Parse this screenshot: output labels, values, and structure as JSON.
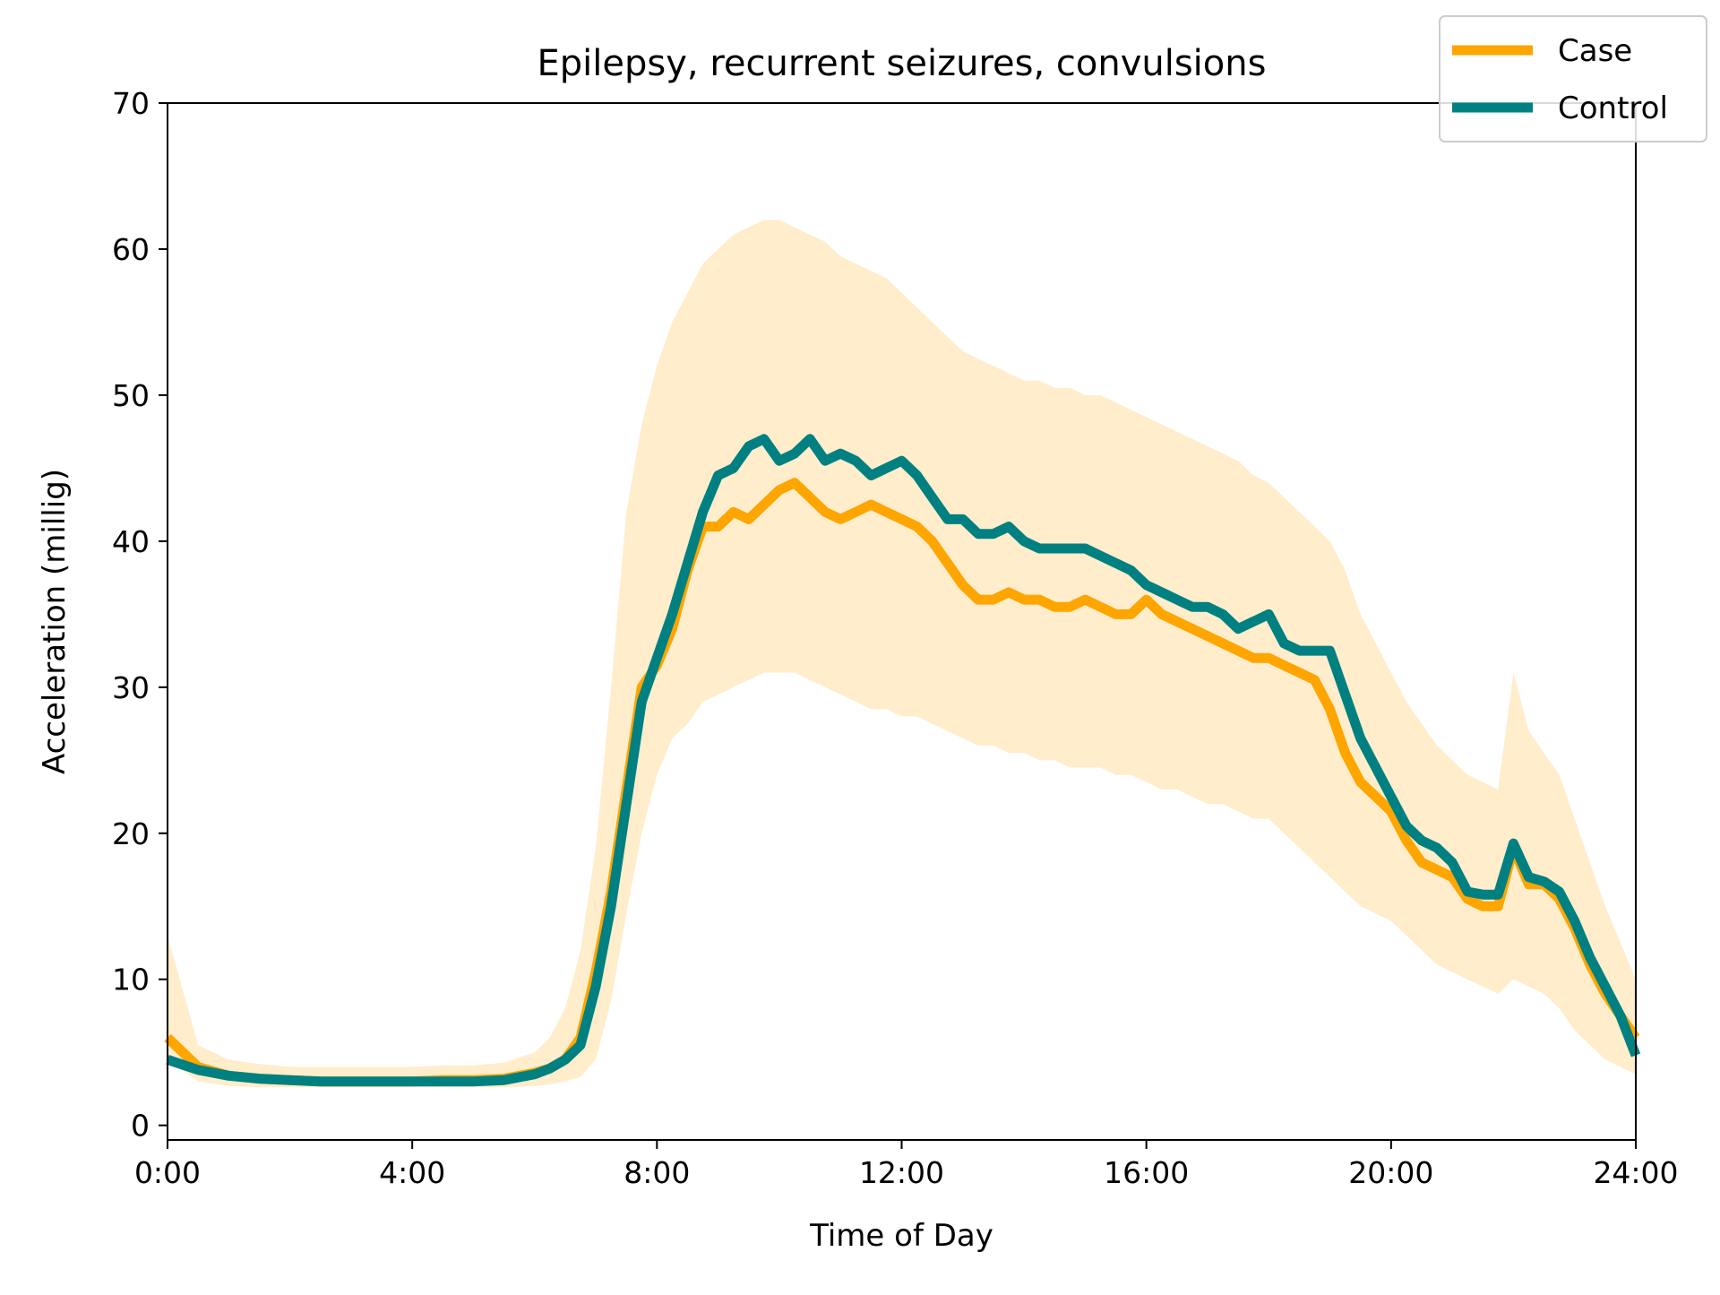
{
  "chart_data": {
    "type": "line",
    "title": "Epilepsy, recurrent seizures, convulsions",
    "xlabel": "Time of Day",
    "ylabel": "Acceleration (millig)",
    "xlim": [
      0,
      24
    ],
    "ylim": [
      -1,
      70
    ],
    "x_ticks": [
      {
        "value": 0,
        "label": "0:00"
      },
      {
        "value": 4,
        "label": "4:00"
      },
      {
        "value": 8,
        "label": "8:00"
      },
      {
        "value": 12,
        "label": "12:00"
      },
      {
        "value": 16,
        "label": "16:00"
      },
      {
        "value": 20,
        "label": "20:00"
      },
      {
        "value": 24,
        "label": "24:00"
      }
    ],
    "y_ticks": [
      {
        "value": 0,
        "label": "0"
      },
      {
        "value": 10,
        "label": "10"
      },
      {
        "value": 20,
        "label": "20"
      },
      {
        "value": 30,
        "label": "30"
      },
      {
        "value": 40,
        "label": "40"
      },
      {
        "value": 50,
        "label": "50"
      },
      {
        "value": 60,
        "label": "60"
      },
      {
        "value": 70,
        "label": "70"
      }
    ],
    "grid": false,
    "legend_position": "top-right",
    "x": [
      0,
      0.5,
      1,
      1.5,
      2,
      2.5,
      3,
      3.5,
      4,
      4.5,
      5,
      5.5,
      6,
      6.25,
      6.5,
      6.75,
      7,
      7.25,
      7.5,
      7.75,
      8,
      8.25,
      8.5,
      8.75,
      9,
      9.25,
      9.5,
      9.75,
      10,
      10.25,
      10.5,
      10.75,
      11,
      11.25,
      11.5,
      11.75,
      12,
      12.25,
      12.5,
      12.75,
      13,
      13.25,
      13.5,
      13.75,
      14,
      14.25,
      14.5,
      14.75,
      15,
      15.25,
      15.5,
      15.75,
      16,
      16.25,
      16.5,
      16.75,
      17,
      17.25,
      17.5,
      17.75,
      18,
      18.25,
      18.5,
      18.75,
      19,
      19.25,
      19.5,
      19.75,
      20,
      20.25,
      20.5,
      20.75,
      21,
      21.25,
      21.5,
      21.75,
      22,
      22.25,
      22.5,
      22.75,
      23,
      23.25,
      23.5,
      23.75,
      24
    ],
    "series": [
      {
        "name": "Case",
        "color": "#ffa500",
        "band_color": "#ffa500",
        "band_opacity": 0.2,
        "values": [
          6.0,
          4.0,
          3.4,
          3.2,
          3.1,
          3.0,
          3.0,
          3.0,
          3.0,
          3.1,
          3.1,
          3.2,
          3.6,
          3.9,
          4.5,
          6.0,
          10.5,
          16.0,
          23.0,
          30.0,
          31.5,
          34.0,
          38.0,
          41.0,
          41.0,
          42.0,
          41.5,
          42.5,
          43.5,
          44.0,
          43.0,
          42.0,
          41.5,
          42.0,
          42.5,
          42.0,
          41.5,
          41.0,
          40.0,
          38.5,
          37.0,
          36.0,
          36.0,
          36.5,
          36.0,
          36.0,
          35.5,
          35.5,
          36.0,
          35.5,
          35.0,
          35.0,
          36.0,
          35.0,
          34.5,
          34.0,
          33.5,
          33.0,
          32.5,
          32.0,
          32.0,
          31.5,
          31.0,
          30.5,
          28.5,
          25.5,
          23.5,
          22.5,
          21.5,
          19.5,
          18.0,
          17.5,
          17.0,
          15.5,
          15.0,
          15.0,
          19.0,
          16.5,
          16.5,
          15.5,
          13.5,
          11.0,
          9.0,
          7.5,
          6.0
        ],
        "lower": [
          4.5,
          3.0,
          2.7,
          2.6,
          2.6,
          2.6,
          2.6,
          2.6,
          2.6,
          2.6,
          2.6,
          2.6,
          2.7,
          2.8,
          3.0,
          3.3,
          4.5,
          8.5,
          14.5,
          20.0,
          24.0,
          26.5,
          27.5,
          29.0,
          29.5,
          30.0,
          30.5,
          31.0,
          31.0,
          31.0,
          30.5,
          30.0,
          29.5,
          29.0,
          28.5,
          28.5,
          28.0,
          28.0,
          27.5,
          27.0,
          26.5,
          26.0,
          26.0,
          25.5,
          25.5,
          25.0,
          25.0,
          24.5,
          24.5,
          24.5,
          24.0,
          24.0,
          23.5,
          23.0,
          23.0,
          22.5,
          22.0,
          22.0,
          21.5,
          21.0,
          21.0,
          20.0,
          19.0,
          18.0,
          17.0,
          16.0,
          15.0,
          14.5,
          14.0,
          13.0,
          12.0,
          11.0,
          10.5,
          10.0,
          9.5,
          9.0,
          10.0,
          9.5,
          9.0,
          8.0,
          6.5,
          5.5,
          4.5,
          4.0,
          3.5
        ],
        "upper": [
          13.0,
          5.5,
          4.5,
          4.2,
          4.0,
          4.0,
          4.0,
          4.0,
          4.0,
          4.1,
          4.1,
          4.3,
          5.0,
          6.0,
          8.0,
          12.0,
          19.0,
          30.0,
          42.0,
          48.0,
          52.0,
          55.0,
          57.0,
          59.0,
          60.0,
          61.0,
          61.5,
          62.0,
          62.0,
          61.5,
          61.0,
          60.5,
          59.5,
          59.0,
          58.5,
          58.0,
          57.0,
          56.0,
          55.0,
          54.0,
          53.0,
          52.5,
          52.0,
          51.5,
          51.0,
          51.0,
          50.5,
          50.5,
          50.0,
          50.0,
          49.5,
          49.0,
          48.5,
          48.0,
          47.5,
          47.0,
          46.5,
          46.0,
          45.5,
          44.5,
          44.0,
          43.0,
          42.0,
          41.0,
          40.0,
          38.0,
          35.0,
          33.0,
          31.0,
          29.0,
          27.5,
          26.0,
          25.0,
          24.0,
          23.5,
          23.0,
          31.0,
          27.0,
          25.5,
          24.0,
          21.0,
          18.0,
          15.0,
          12.5,
          10.0
        ]
      },
      {
        "name": "Control",
        "color": "#008080",
        "band_color": "#008080",
        "band_opacity": 0.2,
        "values": [
          4.5,
          3.8,
          3.4,
          3.2,
          3.1,
          3.0,
          3.0,
          3.0,
          3.0,
          3.0,
          3.0,
          3.1,
          3.5,
          3.9,
          4.5,
          5.5,
          9.5,
          15.0,
          22.0,
          29.0,
          32.0,
          35.0,
          38.5,
          42.0,
          44.5,
          45.0,
          46.5,
          47.0,
          45.5,
          46.0,
          47.0,
          45.5,
          46.0,
          45.5,
          44.5,
          45.0,
          45.5,
          44.5,
          43.0,
          41.5,
          41.5,
          40.5,
          40.5,
          41.0,
          40.0,
          39.5,
          39.5,
          39.5,
          39.5,
          39.0,
          38.5,
          38.0,
          37.0,
          36.5,
          36.0,
          35.5,
          35.5,
          35.0,
          34.0,
          34.5,
          35.0,
          33.0,
          32.5,
          32.5,
          32.5,
          29.5,
          26.5,
          24.5,
          22.5,
          20.5,
          19.5,
          19.0,
          18.0,
          16.0,
          15.8,
          15.8,
          19.3,
          17.0,
          16.7,
          16.0,
          14.0,
          11.5,
          9.5,
          7.5,
          4.8
        ]
      }
    ],
    "legend": [
      {
        "label": "Case",
        "color": "#ffa500"
      },
      {
        "label": "Control",
        "color": "#008080"
      }
    ]
  }
}
